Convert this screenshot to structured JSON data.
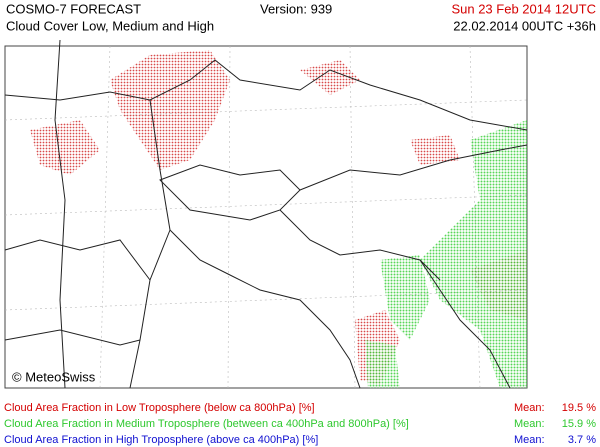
{
  "header": {
    "title": "COSMO-7 FORECAST",
    "subtitle": "Cloud Cover Low, Medium and High",
    "version": "Version: 939",
    "valid_time": "Sun 23 Feb 2014 12UTC",
    "run_time": "22.02.2014 00UTC +36h"
  },
  "map": {
    "credit": "© MeteoSwiss"
  },
  "legend": [
    {
      "label": "Cloud Area Fraction in Low Troposphere (below ca 800hPa) [%]",
      "mean_label": "Mean:",
      "mean": "19.5 %",
      "color": "#d40000"
    },
    {
      "label": "Cloud Area Fraction in Medium Troposphere (between ca 400hPa and 800hPa) [%]",
      "mean_label": "Mean:",
      "mean": "15.9 %",
      "color": "#2ec82e"
    },
    {
      "label": "Cloud Area Fraction in High Troposphere (above ca 400hPa) [%]",
      "mean_label": "Mean:",
      "mean": "3.7 %",
      "color": "#1010d0"
    }
  ]
}
